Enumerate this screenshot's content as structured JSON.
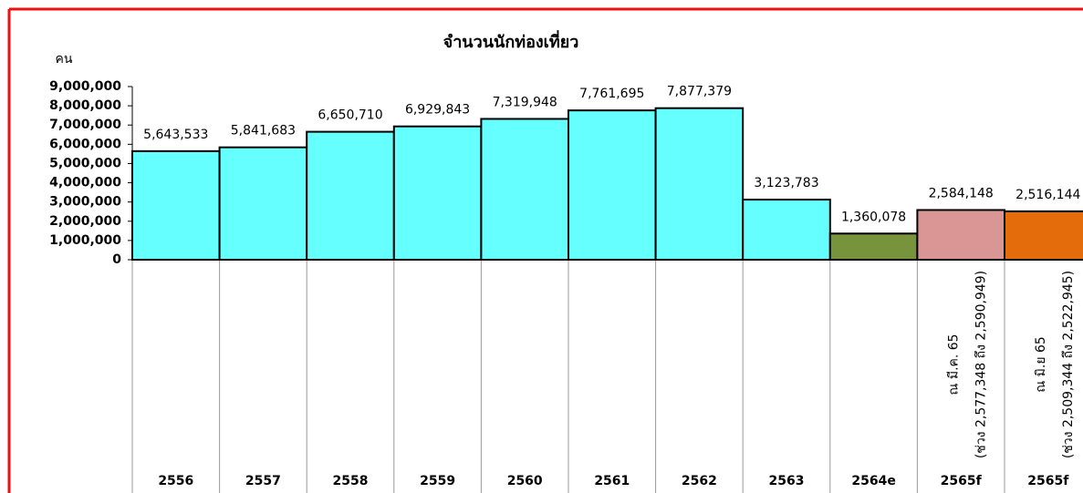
{
  "chart_data": {
    "type": "bar",
    "title": "จำนวนนักท่องเที่ยว",
    "y_label": "คน",
    "categories": [
      "2556",
      "2557",
      "2558",
      "2559",
      "2560",
      "2561",
      "2562",
      "2563",
      "2564e",
      "2565f",
      "2565f"
    ],
    "values": [
      5643533,
      5841683,
      6650710,
      6929843,
      7319948,
      7761695,
      7877379,
      3123783,
      1360078,
      2584148,
      2516144
    ],
    "value_labels": [
      "5,643,533",
      "5,841,683",
      "6,650,710",
      "6,929,843",
      "7,319,948",
      "7,761,695",
      "7,877,379",
      "3,123,783",
      "1,360,078",
      "2,584,148",
      "2,516,144"
    ],
    "colors": [
      "#66ffff",
      "#66ffff",
      "#66ffff",
      "#66ffff",
      "#66ffff",
      "#66ffff",
      "#66ffff",
      "#66ffff",
      "#77933c",
      "#d99694",
      "#e46c0a"
    ],
    "category_notes": [
      null,
      null,
      null,
      null,
      null,
      null,
      null,
      null,
      null,
      [
        "ณ มี.ค. 65",
        "(ช่วง 2,577,348 ถึง 2,590,949)"
      ],
      [
        "ณ มิ.ย 65",
        "(ช่วง 2,509,344 ถึง 2,522,945)"
      ]
    ],
    "ylim": [
      0,
      9000000
    ],
    "yticks": [
      {
        "value": 0,
        "label": "0"
      },
      {
        "value": 1000000,
        "label": "1,000,000"
      },
      {
        "value": 2000000,
        "label": "2,000,000"
      },
      {
        "value": 3000000,
        "label": "3,000,000"
      },
      {
        "value": 4000000,
        "label": "4,000,000"
      },
      {
        "value": 5000000,
        "label": "5,000,000"
      },
      {
        "value": 6000000,
        "label": "6,000,000"
      },
      {
        "value": 7000000,
        "label": "7,000,000"
      },
      {
        "value": 8000000,
        "label": "8,000,000"
      },
      {
        "value": 9000000,
        "label": "9,000,000"
      }
    ]
  }
}
